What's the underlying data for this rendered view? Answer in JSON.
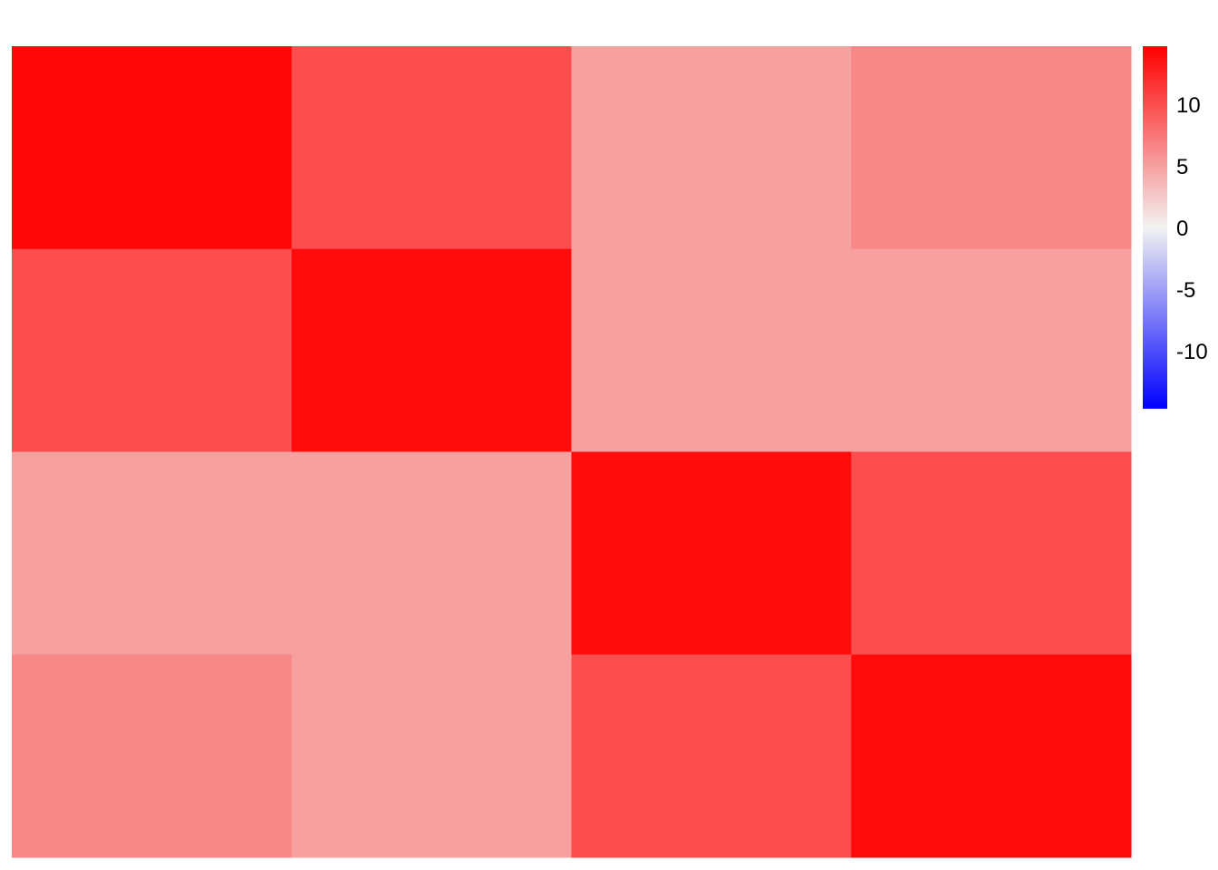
{
  "chart_data": {
    "type": "heatmap",
    "title": "",
    "xlabel": "",
    "ylabel": "",
    "rows": 4,
    "cols": 4,
    "block_values": [
      [
        14.2,
        10.0,
        5.0,
        6.5
      ],
      [
        10.0,
        14.0,
        5.0,
        5.0
      ],
      [
        5.0,
        5.0,
        14.0,
        10.0
      ],
      [
        6.5,
        5.0,
        10.0,
        14.0
      ]
    ],
    "color_scale": {
      "range": [
        -14.7,
        14.7
      ],
      "low": "#0000ff",
      "mid": "#f2f2f2",
      "high": "#ff0000",
      "ticks": [
        10,
        5,
        0,
        -5,
        -10
      ],
      "tick_labels": [
        "10",
        "5",
        "0",
        "-5",
        "-10"
      ]
    },
    "legend_position": "right"
  }
}
